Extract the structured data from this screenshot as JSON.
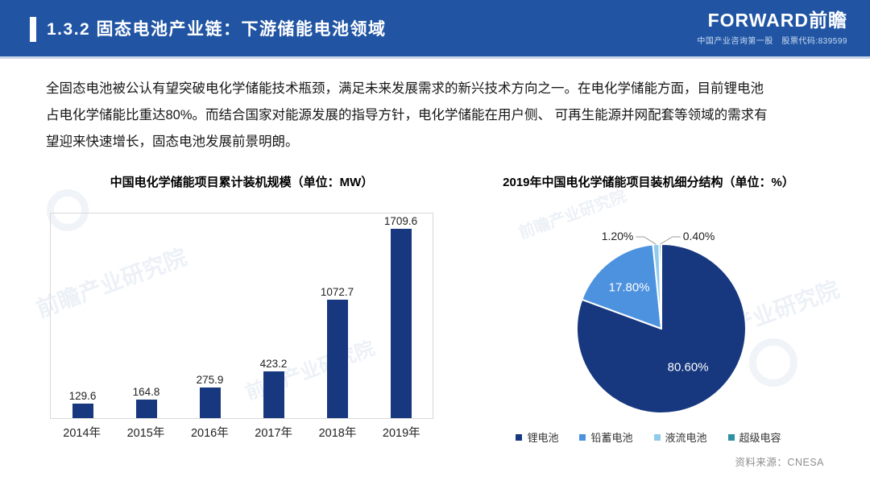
{
  "header": {
    "title": "1.3.2 固态电池产业链：下游储能电池领域",
    "brand": "FORWARD前瞻",
    "tagline": "中国产业咨询第一股　股票代码:839599",
    "header_color": "#2155A4"
  },
  "body": {
    "lines": [
      "全固态电池被公认有望突破电化学储能技术瓶颈，满足未来发展需求的新兴技术方向之一。在电化学储能方面，目前锂电池",
      "占电化学储能比重达80%。而结合国家对能源发展的指导方针，电化学储能在用户侧、 可再生能源并网配套等领域的需求有",
      "望迎来快速增长，固态电池发展前景明朗。"
    ]
  },
  "watermark_text": "前瞻产业研究院",
  "source_note": "资料来源：CNESA",
  "chart_data": [
    {
      "type": "bar",
      "title": "中国电化学储能项目累计装机规模（单位：MW）",
      "categories": [
        "2014年",
        "2015年",
        "2016年",
        "2017年",
        "2018年",
        "2019年"
      ],
      "values": [
        129.6,
        164.8,
        275.9,
        423.2,
        1072.7,
        1709.6
      ],
      "bar_color": "#17387F",
      "ylim": [
        0,
        1800
      ],
      "grid": false,
      "plot_border_color": "#d8d8d8",
      "value_labels": [
        "129.6",
        "164.8",
        "275.9",
        "423.2",
        "1072.7",
        "1709.6"
      ]
    },
    {
      "type": "pie",
      "title": "2019年中国电化学储能项目装机细分结构（单位：%）",
      "labels": [
        "锂电池",
        "铅蓄电池",
        "液流电池",
        "超级电容"
      ],
      "values": [
        80.6,
        17.8,
        1.2,
        0.4
      ],
      "display_labels": [
        "80.60%",
        "17.80%",
        "1.20%",
        "0.40%"
      ],
      "colors": [
        "#17387F",
        "#4D92DE",
        "#8FCBEA",
        "#2F8FA3"
      ],
      "start_angle_deg": 0,
      "direction": "clockwise",
      "legend_position": "bottom"
    }
  ]
}
